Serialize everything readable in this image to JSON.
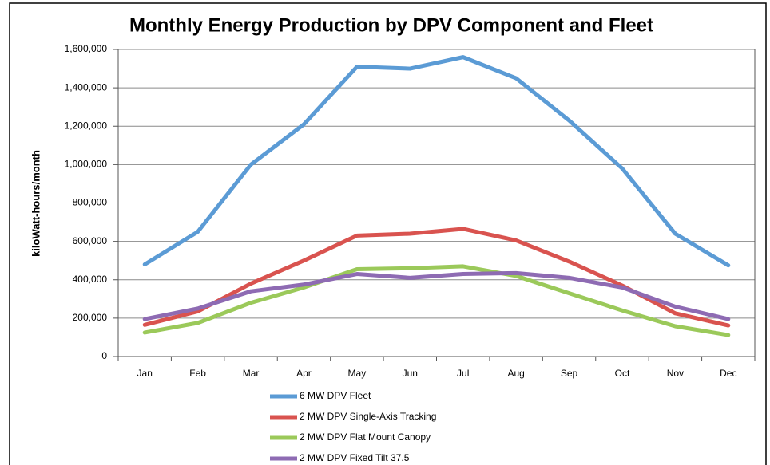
{
  "chart_data": {
    "type": "line",
    "title": "Monthly Energy Production by DPV Component and Fleet",
    "y_label": "kiloWatt-hours/month",
    "categories": [
      "Jan",
      "Feb",
      "Mar",
      "Apr",
      "May",
      "Jun",
      "Jul",
      "Aug",
      "Sep",
      "Oct",
      "Nov",
      "Dec"
    ],
    "series": [
      {
        "name": "6 MW DPV Fleet",
        "color": "#5b9bd5",
        "values": [
          480000,
          650000,
          1000000,
          1210000,
          1510000,
          1500000,
          1560000,
          1450000,
          1230000,
          980000,
          640000,
          475000
        ]
      },
      {
        "name": "2 MW DPV Single-Axis Tracking",
        "color": "#d9534f",
        "values": [
          165000,
          235000,
          380000,
          500000,
          630000,
          640000,
          665000,
          605000,
          495000,
          370000,
          225000,
          162000
        ]
      },
      {
        "name": "2 MW DPV Flat Mount Canopy",
        "color": "#9bc95a",
        "values": [
          125000,
          175000,
          280000,
          360000,
          455000,
          460000,
          470000,
          420000,
          330000,
          240000,
          158000,
          112000
        ]
      },
      {
        "name": "2 MW DPV Fixed Tilt 37.5",
        "color": "#8e6bb3",
        "values": [
          195000,
          250000,
          340000,
          375000,
          430000,
          410000,
          430000,
          435000,
          410000,
          360000,
          260000,
          195000
        ]
      }
    ],
    "ylim": [
      0,
      1600000
    ],
    "yticks": [
      0,
      {
        "value": 200000,
        "label": "200,000"
      },
      {
        "value": 400000,
        "label": "400,000"
      },
      {
        "value": 600000,
        "label": "600,000"
      },
      {
        "value": 800000,
        "label": "800,000"
      },
      {
        "value": 1000000,
        "label": "1,000,000"
      },
      {
        "value": 1200000,
        "label": "1,200,000"
      },
      {
        "value": 1400000,
        "label": "1,400,000"
      },
      {
        "value": 1600000,
        "label": "1,600,000"
      }
    ],
    "grid": true,
    "legend": "bottom"
  }
}
